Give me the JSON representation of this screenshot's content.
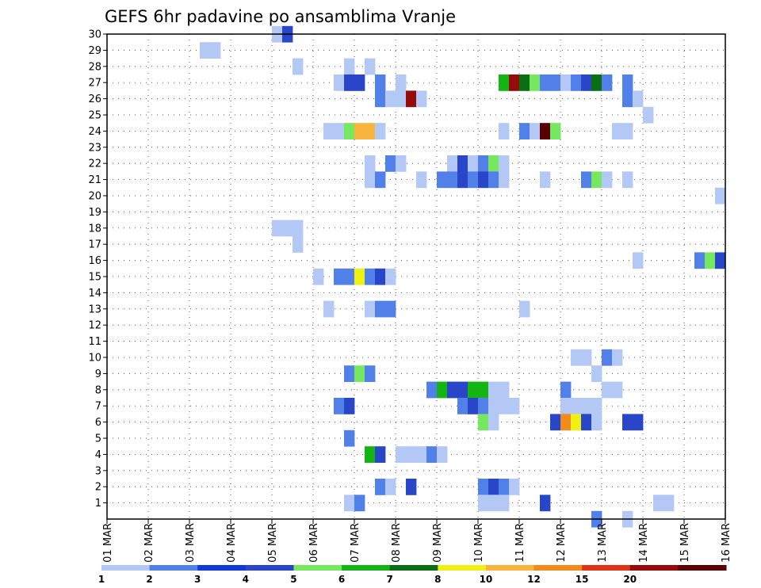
{
  "chart_data": {
    "type": "heatmap",
    "title": "GEFS 6hr padavine po ansamblima Vranje",
    "x_tick_labels": [
      "01 MAR",
      "02 MAR",
      "03 MAR",
      "04 MAR",
      "05 MAR",
      "06 MAR",
      "07 MAR",
      "08 MAR",
      "09 MAR",
      "10 MAR",
      "11 MAR",
      "12 MAR",
      "13 MAR",
      "14 MAR",
      "15 MAR",
      "16 MAR"
    ],
    "y_tick_labels": [
      "1",
      "2",
      "3",
      "4",
      "5",
      "6",
      "7",
      "8",
      "9",
      "10",
      "11",
      "12",
      "13",
      "14",
      "15",
      "16",
      "17",
      "18",
      "19",
      "20",
      "21",
      "22",
      "23",
      "24",
      "25",
      "26",
      "27",
      "28",
      "29",
      "30"
    ],
    "xlim_steps": [
      0,
      60
    ],
    "ylim": [
      0,
      30
    ],
    "steps_per_day": 4,
    "xlabel": "",
    "ylabel": "",
    "legend": {
      "placement": "bottom",
      "labels": [
        "1",
        "2",
        "3",
        "4",
        "5",
        "6",
        "7",
        "8",
        "10",
        "12",
        "15",
        "20"
      ],
      "colors": [
        "#b4c8f5",
        "#5080e8",
        "#1238d8",
        "#2a46c8",
        "#76e860",
        "#14b414",
        "#0a6e14",
        "#f0f014",
        "#f8b43c",
        "#f08c1e",
        "#e03214",
        "#960a0a",
        "#5a0000"
      ]
    },
    "cells_note": "each cell: member (y row 1-30), step (6h step index from 01 MAR 00Z), class (index into legend.colors)",
    "cells": [
      [
        30,
        16,
        0
      ],
      [
        30,
        17,
        3
      ],
      [
        29,
        9,
        0
      ],
      [
        29,
        10,
        0
      ],
      [
        28,
        18,
        0
      ],
      [
        28,
        23,
        0
      ],
      [
        28,
        25,
        0
      ],
      [
        27,
        22,
        0
      ],
      [
        27,
        23,
        3
      ],
      [
        27,
        24,
        3
      ],
      [
        27,
        26,
        1
      ],
      [
        27,
        28,
        0
      ],
      [
        27,
        38,
        5
      ],
      [
        27,
        39,
        11
      ],
      [
        27,
        40,
        6
      ],
      [
        27,
        41,
        4
      ],
      [
        27,
        42,
        1
      ],
      [
        27,
        43,
        1
      ],
      [
        27,
        44,
        0
      ],
      [
        27,
        45,
        1
      ],
      [
        27,
        46,
        3
      ],
      [
        27,
        47,
        6
      ],
      [
        27,
        48,
        1
      ],
      [
        27,
        50,
        1
      ],
      [
        26,
        26,
        1
      ],
      [
        26,
        27,
        0
      ],
      [
        26,
        28,
        0
      ],
      [
        26,
        29,
        11
      ],
      [
        26,
        30,
        0
      ],
      [
        26,
        50,
        1
      ],
      [
        26,
        51,
        0
      ],
      [
        25,
        52,
        0
      ],
      [
        24,
        21,
        0
      ],
      [
        24,
        22,
        0
      ],
      [
        24,
        23,
        4
      ],
      [
        24,
        24,
        8
      ],
      [
        24,
        25,
        8
      ],
      [
        24,
        26,
        0
      ],
      [
        24,
        38,
        0
      ],
      [
        24,
        40,
        1
      ],
      [
        24,
        41,
        0
      ],
      [
        24,
        42,
        12
      ],
      [
        24,
        43,
        4
      ],
      [
        24,
        49,
        0
      ],
      [
        24,
        50,
        0
      ],
      [
        22,
        25,
        0
      ],
      [
        22,
        27,
        1
      ],
      [
        22,
        28,
        0
      ],
      [
        22,
        33,
        0
      ],
      [
        22,
        34,
        3
      ],
      [
        22,
        35,
        0
      ],
      [
        22,
        36,
        1
      ],
      [
        22,
        37,
        4
      ],
      [
        22,
        38,
        0
      ],
      [
        21,
        25,
        0
      ],
      [
        21,
        26,
        1
      ],
      [
        21,
        30,
        0
      ],
      [
        21,
        32,
        1
      ],
      [
        21,
        33,
        1
      ],
      [
        21,
        34,
        3
      ],
      [
        21,
        35,
        1
      ],
      [
        21,
        36,
        3
      ],
      [
        21,
        37,
        1
      ],
      [
        21,
        38,
        0
      ],
      [
        21,
        42,
        0
      ],
      [
        21,
        46,
        1
      ],
      [
        21,
        47,
        4
      ],
      [
        21,
        48,
        0
      ],
      [
        21,
        50,
        0
      ],
      [
        20,
        59,
        0
      ],
      [
        18,
        16,
        0
      ],
      [
        18,
        17,
        0
      ],
      [
        18,
        18,
        0
      ],
      [
        17,
        18,
        0
      ],
      [
        16,
        51,
        0
      ],
      [
        16,
        57,
        1
      ],
      [
        16,
        58,
        4
      ],
      [
        16,
        59,
        3
      ],
      [
        15,
        20,
        0
      ],
      [
        15,
        22,
        1
      ],
      [
        15,
        23,
        1
      ],
      [
        15,
        24,
        7
      ],
      [
        15,
        25,
        1
      ],
      [
        15,
        26,
        3
      ],
      [
        15,
        27,
        0
      ],
      [
        13,
        21,
        0
      ],
      [
        13,
        25,
        0
      ],
      [
        13,
        26,
        1
      ],
      [
        13,
        27,
        1
      ],
      [
        13,
        40,
        0
      ],
      [
        10,
        45,
        0
      ],
      [
        10,
        46,
        0
      ],
      [
        10,
        48,
        1
      ],
      [
        10,
        49,
        0
      ],
      [
        9,
        23,
        1
      ],
      [
        9,
        24,
        4
      ],
      [
        9,
        25,
        1
      ],
      [
        9,
        47,
        0
      ],
      [
        8,
        31,
        1
      ],
      [
        8,
        32,
        5
      ],
      [
        8,
        33,
        3
      ],
      [
        8,
        34,
        3
      ],
      [
        8,
        35,
        5
      ],
      [
        8,
        36,
        5
      ],
      [
        8,
        37,
        0
      ],
      [
        8,
        38,
        0
      ],
      [
        8,
        44,
        1
      ],
      [
        8,
        48,
        0
      ],
      [
        8,
        49,
        0
      ],
      [
        7,
        22,
        1
      ],
      [
        7,
        23,
        3
      ],
      [
        7,
        34,
        1
      ],
      [
        7,
        35,
        3
      ],
      [
        7,
        36,
        1
      ],
      [
        7,
        37,
        0
      ],
      [
        7,
        38,
        0
      ],
      [
        7,
        39,
        0
      ],
      [
        7,
        44,
        0
      ],
      [
        7,
        45,
        0
      ],
      [
        7,
        46,
        0
      ],
      [
        7,
        47,
        0
      ],
      [
        6,
        36,
        4
      ],
      [
        6,
        37,
        0
      ],
      [
        6,
        43,
        3
      ],
      [
        6,
        44,
        9
      ],
      [
        6,
        45,
        7
      ],
      [
        6,
        46,
        3
      ],
      [
        6,
        47,
        0
      ],
      [
        6,
        50,
        3
      ],
      [
        6,
        51,
        3
      ],
      [
        5,
        23,
        1
      ],
      [
        4,
        25,
        5
      ],
      [
        4,
        26,
        3
      ],
      [
        4,
        28,
        0
      ],
      [
        4,
        29,
        0
      ],
      [
        4,
        30,
        0
      ],
      [
        4,
        31,
        1
      ],
      [
        4,
        32,
        0
      ],
      [
        2,
        26,
        1
      ],
      [
        2,
        27,
        0
      ],
      [
        2,
        29,
        3
      ],
      [
        2,
        36,
        1
      ],
      [
        2,
        37,
        3
      ],
      [
        2,
        38,
        1
      ],
      [
        2,
        39,
        0
      ],
      [
        1,
        23,
        0
      ],
      [
        1,
        24,
        1
      ],
      [
        1,
        36,
        0
      ],
      [
        1,
        37,
        0
      ],
      [
        1,
        38,
        0
      ],
      [
        1,
        42,
        3
      ],
      [
        1,
        53,
        0
      ],
      [
        1,
        54,
        0
      ],
      [
        0,
        47,
        1
      ],
      [
        0,
        50,
        0
      ]
    ]
  }
}
